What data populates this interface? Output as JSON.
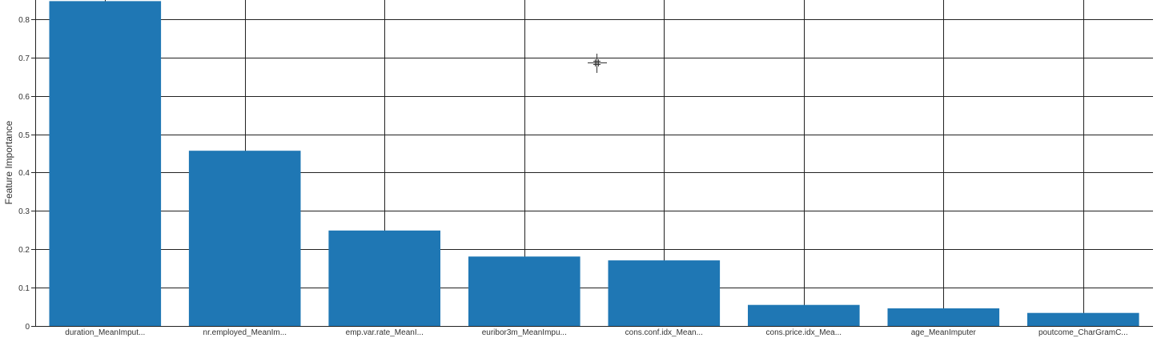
{
  "chart_data": {
    "type": "bar",
    "categories": [
      "duration_MeanImput...",
      "nr.employed_MeanIm...",
      "emp.var.rate_MeanI...",
      "euribor3m_MeanImpu...",
      "cons.conf.idx_Mean...",
      "cons.price.idx_Mea...",
      "age_MeanImputer",
      "poutcome_CharGramC..."
    ],
    "values": [
      0.847,
      0.457,
      0.249,
      0.181,
      0.171,
      0.055,
      0.046,
      0.034
    ],
    "ylabel": "Feature Importance",
    "ylim": [
      0,
      0.85
    ],
    "yticks": [
      0,
      0.1,
      0.2,
      0.3,
      0.4,
      0.5,
      0.6,
      0.7,
      0.8
    ],
    "ytick_labels": [
      "0",
      "0.1",
      "0.2",
      "0.3",
      "0.4",
      "0.5",
      "0.6",
      "0.7",
      "0.8"
    ],
    "grid": true,
    "bar_color": "#1f77b4"
  },
  "colors": {
    "bar": "#1f77b4",
    "grid": "#222222",
    "background": "#ffffff"
  }
}
